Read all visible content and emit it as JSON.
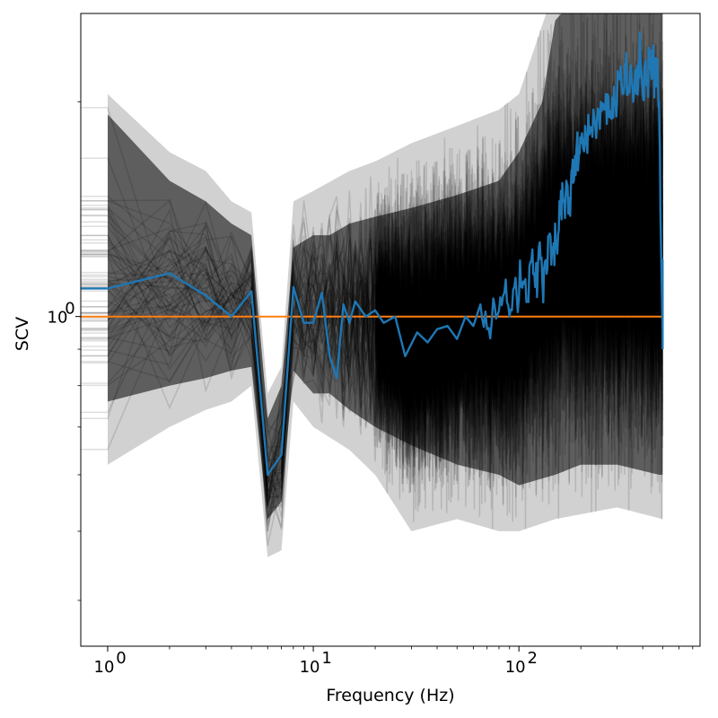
{
  "chart_data": {
    "type": "line",
    "title": "",
    "xlabel": "Frequency (Hz)",
    "ylabel": "SCV",
    "x_scale": "log",
    "y_scale": "log",
    "xlim": [
      0.74,
      760
    ],
    "ylim": [
      0.345,
      2.66
    ],
    "grid": false,
    "legend": "none",
    "x_ticks": [
      {
        "value": 1,
        "base": "10",
        "exp": "0"
      },
      {
        "value": 10,
        "base": "10",
        "exp": "1"
      },
      {
        "value": 100,
        "base": "10",
        "exp": "2"
      }
    ],
    "y_ticks": [
      {
        "value": 1,
        "base": "10",
        "exp": "0"
      }
    ],
    "colors": {
      "mean": "#1f77b4",
      "reference": "#ff7f0e",
      "surrogates": "#000000"
    },
    "series": [
      {
        "role": "mean",
        "color": "#1f77b4",
        "points": [
          [
            0.74,
            1.095
          ],
          [
            1,
            1.095
          ],
          [
            2,
            1.15
          ],
          [
            3,
            1.07
          ],
          [
            4,
            1.0
          ],
          [
            5,
            1.085
          ],
          [
            6,
            0.6
          ],
          [
            7,
            0.64
          ],
          [
            8,
            1.1
          ],
          [
            9,
            0.98
          ],
          [
            10,
            0.98
          ],
          [
            11,
            1.08
          ],
          [
            12,
            0.88
          ],
          [
            13,
            0.82
          ],
          [
            14,
            1.04
          ],
          [
            15,
            0.98
          ],
          [
            16,
            1.05
          ],
          [
            18,
            1.0
          ],
          [
            20,
            1.02
          ],
          [
            22,
            0.98
          ],
          [
            25,
            1.0
          ],
          [
            28,
            0.88
          ],
          [
            32,
            0.95
          ],
          [
            36,
            0.92
          ],
          [
            40,
            0.96
          ],
          [
            45,
            0.97
          ],
          [
            50,
            0.93
          ],
          [
            55,
            1.0
          ],
          [
            60,
            0.97
          ],
          [
            65,
            1.04
          ],
          [
            70,
            0.96
          ],
          [
            75,
            1.06
          ],
          [
            80,
            1.02
          ],
          [
            85,
            1.08
          ],
          [
            90,
            1.0
          ],
          [
            95,
            1.1
          ],
          [
            100,
            1.06
          ],
          [
            105,
            1.12
          ],
          [
            110,
            1.05
          ],
          [
            115,
            1.2
          ],
          [
            120,
            1.1
          ],
          [
            125,
            1.25
          ],
          [
            130,
            1.12
          ],
          [
            135,
            1.2
          ],
          [
            140,
            1.3
          ],
          [
            145,
            1.25
          ],
          [
            150,
            1.35
          ],
          [
            155,
            1.3
          ],
          [
            160,
            1.5
          ],
          [
            165,
            1.45
          ],
          [
            170,
            1.55
          ],
          [
            175,
            1.4
          ],
          [
            180,
            1.6
          ],
          [
            185,
            1.55
          ],
          [
            190,
            1.7
          ],
          [
            195,
            1.65
          ],
          [
            200,
            1.75
          ],
          [
            210,
            1.85
          ],
          [
            220,
            1.8
          ],
          [
            230,
            1.95
          ],
          [
            240,
            1.9
          ],
          [
            250,
            2.0
          ],
          [
            260,
            1.95
          ],
          [
            270,
            2.05
          ],
          [
            280,
            1.9
          ],
          [
            290,
            2.1
          ],
          [
            300,
            2.0
          ],
          [
            310,
            2.15
          ],
          [
            320,
            2.05
          ],
          [
            330,
            2.2
          ],
          [
            340,
            2.1
          ],
          [
            350,
            2.25
          ],
          [
            360,
            2.0
          ],
          [
            370,
            2.2
          ],
          [
            380,
            2.1
          ],
          [
            390,
            2.3
          ],
          [
            400,
            2.05
          ],
          [
            410,
            2.25
          ],
          [
            420,
            2.15
          ],
          [
            430,
            2.35
          ],
          [
            440,
            2.2
          ],
          [
            450,
            2.4
          ],
          [
            460,
            2.1
          ],
          [
            470,
            2.3
          ],
          [
            480,
            2.0
          ],
          [
            490,
            1.3
          ],
          [
            500,
            0.95
          ]
        ]
      },
      {
        "role": "reference",
        "color": "#ff7f0e",
        "points": [
          [
            0.74,
            1.0
          ],
          [
            500,
            1.0
          ]
        ]
      }
    ],
    "surrogate_band": {
      "color": "#000000",
      "count": 200,
      "upper": [
        [
          1,
          1.92
        ],
        [
          2,
          1.55
        ],
        [
          3,
          1.45
        ],
        [
          4,
          1.35
        ],
        [
          5,
          1.3
        ],
        [
          6,
          0.72
        ],
        [
          7,
          0.8
        ],
        [
          8,
          1.25
        ],
        [
          10,
          1.3
        ],
        [
          12,
          1.3
        ],
        [
          15,
          1.35
        ],
        [
          20,
          1.38
        ],
        [
          30,
          1.42
        ],
        [
          50,
          1.48
        ],
        [
          80,
          1.55
        ],
        [
          100,
          1.7
        ],
        [
          130,
          2.0
        ],
        [
          150,
          2.6
        ],
        [
          200,
          2.85
        ],
        [
          300,
          2.9
        ],
        [
          480,
          2.95
        ],
        [
          500,
          2.9
        ]
      ],
      "lower": [
        [
          1,
          0.76
        ],
        [
          2,
          0.8
        ],
        [
          3,
          0.82
        ],
        [
          4,
          0.84
        ],
        [
          5,
          0.85
        ],
        [
          6,
          0.52
        ],
        [
          7,
          0.55
        ],
        [
          8,
          0.84
        ],
        [
          10,
          0.78
        ],
        [
          12,
          0.78
        ],
        [
          15,
          0.74
        ],
        [
          20,
          0.7
        ],
        [
          30,
          0.66
        ],
        [
          50,
          0.62
        ],
        [
          80,
          0.6
        ],
        [
          100,
          0.58
        ],
        [
          150,
          0.6
        ],
        [
          200,
          0.62
        ],
        [
          300,
          0.62
        ],
        [
          480,
          0.6
        ],
        [
          500,
          0.6
        ]
      ],
      "outer_upper": [
        [
          1,
          2.05
        ],
        [
          2,
          1.7
        ],
        [
          3,
          1.6
        ],
        [
          4,
          1.45
        ],
        [
          5,
          1.4
        ],
        [
          6,
          0.78
        ],
        [
          7,
          0.85
        ],
        [
          8,
          1.45
        ],
        [
          10,
          1.5
        ],
        [
          15,
          1.6
        ],
        [
          20,
          1.65
        ],
        [
          30,
          1.75
        ],
        [
          50,
          1.85
        ],
        [
          80,
          1.95
        ],
        [
          100,
          2.05
        ],
        [
          150,
          2.9
        ],
        [
          300,
          3.0
        ],
        [
          480,
          3.1
        ],
        [
          500,
          3.0
        ]
      ],
      "outer_lower": [
        [
          1,
          0.62
        ],
        [
          2,
          0.7
        ],
        [
          3,
          0.74
        ],
        [
          4,
          0.76
        ],
        [
          5,
          0.8
        ],
        [
          6,
          0.46
        ],
        [
          7,
          0.47
        ],
        [
          8,
          0.76
        ],
        [
          10,
          0.7
        ],
        [
          15,
          0.65
        ],
        [
          20,
          0.6
        ],
        [
          30,
          0.5
        ],
        [
          50,
          0.52
        ],
        [
          80,
          0.5
        ],
        [
          100,
          0.5
        ],
        [
          150,
          0.52
        ],
        [
          300,
          0.54
        ],
        [
          500,
          0.52
        ]
      ]
    }
  }
}
